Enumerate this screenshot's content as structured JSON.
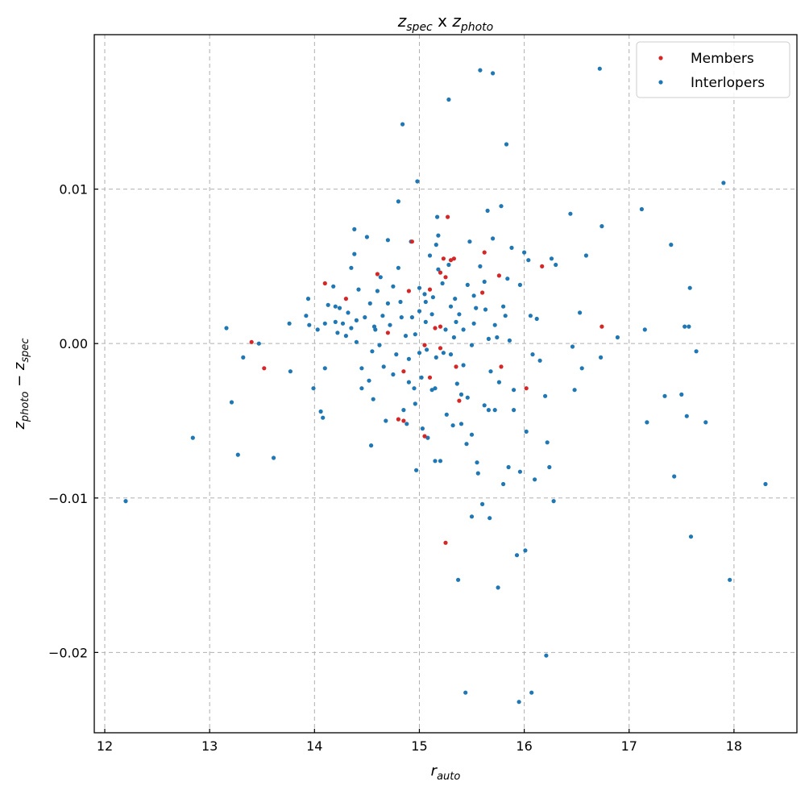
{
  "chart_data": {
    "type": "scatter",
    "title": {
      "main": "z",
      "sub1": "spec",
      "mid": " x ",
      "main2": "z",
      "sub2": "photo"
    },
    "xlabel": {
      "main": "r",
      "sub": "auto"
    },
    "ylabel": {
      "a": "z",
      "a_sub": "photo",
      "op": " − ",
      "b": "z",
      "b_sub": "spec"
    },
    "xlim": [
      11.9,
      18.6
    ],
    "ylim": [
      -0.0252,
      0.02
    ],
    "x_ticks": [
      12,
      13,
      14,
      15,
      16,
      17,
      18
    ],
    "x_tick_labels": [
      "12",
      "13",
      "14",
      "15",
      "16",
      "17",
      "18"
    ],
    "y_ticks": [
      -0.02,
      -0.01,
      0.0,
      0.01
    ],
    "y_tick_labels": [
      "−0.02",
      "−0.01",
      "0.00",
      "0.01"
    ],
    "grid": true,
    "legend_position": "top-right",
    "colors": {
      "members": "#d62728",
      "interlopers": "#1f77b4"
    },
    "series": [
      {
        "name": "Members",
        "color": "#d62728",
        "points": [
          [
            14.1,
            0.0039
          ],
          [
            14.3,
            0.0029
          ],
          [
            14.6,
            0.0045
          ],
          [
            14.7,
            0.0007
          ],
          [
            14.8,
            -0.0049
          ],
          [
            14.85,
            -0.005
          ],
          [
            14.85,
            -0.0018
          ],
          [
            14.9,
            0.0034
          ],
          [
            14.93,
            0.0066
          ],
          [
            15.05,
            -0.006
          ],
          [
            15.05,
            -0.0001
          ],
          [
            15.1,
            0.0035
          ],
          [
            15.15,
            0.001
          ],
          [
            15.2,
            0.0046
          ],
          [
            15.2,
            0.0011
          ],
          [
            15.2,
            -0.0003
          ],
          [
            15.25,
            0.0043
          ],
          [
            15.27,
            0.0082
          ],
          [
            15.3,
            0.0054
          ],
          [
            15.33,
            0.0055
          ],
          [
            15.35,
            -0.0015
          ],
          [
            15.38,
            -0.0037
          ],
          [
            15.25,
            -0.0129
          ],
          [
            15.6,
            0.0033
          ],
          [
            15.62,
            0.0059
          ],
          [
            15.76,
            0.0044
          ],
          [
            15.78,
            -0.0015
          ],
          [
            16.02,
            -0.0029
          ],
          [
            16.17,
            0.005
          ],
          [
            16.74,
            0.0011
          ],
          [
            13.4,
            0.0001
          ],
          [
            13.52,
            -0.0016
          ],
          [
            15.23,
            0.0055
          ],
          [
            15.1,
            -0.0022
          ]
        ]
      },
      {
        "name": "Interlopers",
        "color": "#1f77b4",
        "points": [
          [
            12.2,
            -0.0102
          ],
          [
            12.84,
            -0.0061
          ],
          [
            13.16,
            0.001
          ],
          [
            13.21,
            -0.0038
          ],
          [
            13.27,
            -0.0072
          ],
          [
            13.32,
            -0.0009
          ],
          [
            13.47,
            0.0
          ],
          [
            13.61,
            -0.0074
          ],
          [
            13.76,
            0.0013
          ],
          [
            13.77,
            -0.0018
          ],
          [
            13.92,
            0.0018
          ],
          [
            13.94,
            0.0029
          ],
          [
            13.95,
            0.0012
          ],
          [
            13.99,
            -0.0029
          ],
          [
            14.03,
            0.0009
          ],
          [
            14.06,
            -0.0044
          ],
          [
            14.08,
            -0.0048
          ],
          [
            14.1,
            -0.0016
          ],
          [
            14.1,
            0.0013
          ],
          [
            14.13,
            0.0025
          ],
          [
            14.18,
            0.0037
          ],
          [
            14.2,
            0.0024
          ],
          [
            14.2,
            0.0014
          ],
          [
            14.22,
            0.0007
          ],
          [
            14.24,
            0.0023
          ],
          [
            14.27,
            0.0013
          ],
          [
            14.3,
            0.0005
          ],
          [
            14.32,
            0.002
          ],
          [
            14.35,
            0.0049
          ],
          [
            14.35,
            0.001
          ],
          [
            14.38,
            0.0074
          ],
          [
            14.38,
            0.0058
          ],
          [
            14.4,
            0.0015
          ],
          [
            14.4,
            0.0001
          ],
          [
            14.42,
            0.0035
          ],
          [
            14.45,
            -0.0016
          ],
          [
            14.45,
            -0.0029
          ],
          [
            14.48,
            0.0017
          ],
          [
            14.5,
            0.0069
          ],
          [
            14.52,
            -0.0024
          ],
          [
            14.53,
            0.0026
          ],
          [
            14.54,
            -0.0066
          ],
          [
            14.55,
            -0.0005
          ],
          [
            14.56,
            -0.0036
          ],
          [
            14.57,
            0.0011
          ],
          [
            14.6,
            0.0034
          ],
          [
            14.62,
            -0.0001
          ],
          [
            14.63,
            0.0043
          ],
          [
            14.65,
            0.0018
          ],
          [
            14.66,
            -0.0015
          ],
          [
            14.7,
            0.0067
          ],
          [
            14.72,
            0.0012
          ],
          [
            14.75,
            0.0037
          ],
          [
            14.75,
            -0.002
          ],
          [
            14.78,
            -0.0007
          ],
          [
            14.8,
            0.0049
          ],
          [
            14.8,
            0.0092
          ],
          [
            14.82,
            0.0027
          ],
          [
            14.83,
            0.0017
          ],
          [
            14.84,
            0.0142
          ],
          [
            14.85,
            -0.0043
          ],
          [
            14.87,
            0.0005
          ],
          [
            14.88,
            -0.0052
          ],
          [
            14.9,
            -0.001
          ],
          [
            14.92,
            0.0066
          ],
          [
            14.93,
            0.0017
          ],
          [
            14.95,
            -0.0029
          ],
          [
            14.96,
            -0.0039
          ],
          [
            14.97,
            -0.0082
          ],
          [
            14.98,
            0.0105
          ],
          [
            15.0,
            0.0036
          ],
          [
            15.0,
            0.0021
          ],
          [
            15.0,
            -0.0006
          ],
          [
            15.02,
            -0.0022
          ],
          [
            15.03,
            -0.0055
          ],
          [
            15.05,
            0.0032
          ],
          [
            15.06,
            0.0014
          ],
          [
            15.07,
            -0.0004
          ],
          [
            15.08,
            -0.0061
          ],
          [
            15.1,
            0.0057
          ],
          [
            15.12,
            0.0019
          ],
          [
            15.13,
            0.003
          ],
          [
            15.15,
            -0.0076
          ],
          [
            15.15,
            -0.0029
          ],
          [
            15.16,
            0.0064
          ],
          [
            15.17,
            0.0082
          ],
          [
            15.18,
            0.007
          ],
          [
            15.18,
            0.0048
          ],
          [
            15.2,
            -0.0076
          ],
          [
            15.22,
            0.0039
          ],
          [
            15.23,
            -0.0006
          ],
          [
            15.25,
            0.0009
          ],
          [
            15.26,
            -0.0046
          ],
          [
            15.28,
            0.0158
          ],
          [
            15.3,
            -0.0007
          ],
          [
            15.3,
            0.0024
          ],
          [
            15.32,
            -0.0053
          ],
          [
            15.33,
            0.0004
          ],
          [
            15.35,
            0.0014
          ],
          [
            15.36,
            -0.0026
          ],
          [
            15.37,
            -0.0153
          ],
          [
            15.38,
            0.0019
          ],
          [
            15.4,
            -0.0052
          ],
          [
            15.4,
            -0.0033
          ],
          [
            15.42,
            0.0009
          ],
          [
            15.44,
            -0.0226
          ],
          [
            15.45,
            -0.0065
          ],
          [
            15.46,
            0.0038
          ],
          [
            15.48,
            0.0066
          ],
          [
            15.5,
            -0.0112
          ],
          [
            15.5,
            -0.0001
          ],
          [
            15.52,
            0.0013
          ],
          [
            15.55,
            -0.0077
          ],
          [
            15.56,
            -0.0084
          ],
          [
            15.58,
            0.0177
          ],
          [
            15.6,
            -0.0104
          ],
          [
            15.62,
            -0.004
          ],
          [
            15.63,
            0.0022
          ],
          [
            15.65,
            0.0086
          ],
          [
            15.66,
            -0.0043
          ],
          [
            15.67,
            -0.0113
          ],
          [
            15.7,
            0.0175
          ],
          [
            15.7,
            0.0068
          ],
          [
            15.72,
            -0.0043
          ],
          [
            15.75,
            -0.0158
          ],
          [
            15.76,
            -0.0025
          ],
          [
            15.78,
            0.0089
          ],
          [
            15.8,
            -0.0091
          ],
          [
            15.82,
            0.0018
          ],
          [
            15.83,
            0.0129
          ],
          [
            15.84,
            0.0042
          ],
          [
            15.85,
            -0.008
          ],
          [
            15.88,
            0.0062
          ],
          [
            15.9,
            -0.0043
          ],
          [
            15.93,
            -0.0137
          ],
          [
            15.95,
            -0.0232
          ],
          [
            15.96,
            -0.0083
          ],
          [
            16.0,
            0.0059
          ],
          [
            16.01,
            -0.0134
          ],
          [
            16.02,
            -0.0057
          ],
          [
            16.04,
            0.0054
          ],
          [
            16.06,
            0.0018
          ],
          [
            16.07,
            -0.0226
          ],
          [
            16.1,
            -0.0088
          ],
          [
            16.12,
            0.0016
          ],
          [
            16.15,
            -0.0011
          ],
          [
            16.2,
            -0.0034
          ],
          [
            16.21,
            -0.0202
          ],
          [
            16.22,
            -0.0064
          ],
          [
            16.24,
            -0.008
          ],
          [
            16.26,
            0.0055
          ],
          [
            16.28,
            -0.0102
          ],
          [
            16.3,
            0.0051
          ],
          [
            16.44,
            0.0084
          ],
          [
            16.46,
            -0.0002
          ],
          [
            16.48,
            -0.003
          ],
          [
            16.53,
            0.002
          ],
          [
            16.55,
            -0.0016
          ],
          [
            16.59,
            0.0057
          ],
          [
            16.72,
            0.0178
          ],
          [
            16.73,
            -0.0009
          ],
          [
            16.74,
            0.0076
          ],
          [
            16.89,
            0.0004
          ],
          [
            17.12,
            0.0087
          ],
          [
            17.15,
            0.0009
          ],
          [
            17.17,
            -0.0051
          ],
          [
            17.34,
            -0.0034
          ],
          [
            17.4,
            0.0064
          ],
          [
            17.43,
            -0.0086
          ],
          [
            17.5,
            -0.0033
          ],
          [
            17.53,
            0.0011
          ],
          [
            17.55,
            -0.0047
          ],
          [
            17.57,
            0.0011
          ],
          [
            17.58,
            0.0036
          ],
          [
            17.59,
            -0.0125
          ],
          [
            17.64,
            -0.0005
          ],
          [
            17.73,
            -0.0051
          ],
          [
            17.9,
            0.0104
          ],
          [
            17.96,
            -0.0153
          ],
          [
            18.3,
            -0.0091
          ],
          [
            15.12,
            -0.003
          ],
          [
            15.28,
            0.0051
          ],
          [
            15.42,
            -0.0014
          ],
          [
            15.54,
            0.0023
          ],
          [
            15.68,
            -0.0018
          ],
          [
            15.74,
            0.0004
          ],
          [
            15.9,
            -0.003
          ],
          [
            15.58,
            0.005
          ],
          [
            15.62,
            0.004
          ],
          [
            15.8,
            0.0024
          ],
          [
            15.34,
            0.0029
          ],
          [
            15.16,
            -0.0009
          ],
          [
            15.06,
            0.0027
          ],
          [
            14.96,
            0.0006
          ],
          [
            14.9,
            -0.0025
          ],
          [
            14.68,
            -0.005
          ],
          [
            14.58,
            0.0009
          ],
          [
            14.7,
            0.0026
          ],
          [
            15.46,
            -0.0035
          ],
          [
            15.52,
            0.0031
          ],
          [
            15.66,
            0.0003
          ],
          [
            15.72,
            0.0012
          ],
          [
            15.86,
            0.0002
          ],
          [
            15.96,
            0.0038
          ],
          [
            16.08,
            -0.0007
          ],
          [
            15.5,
            -0.0059
          ]
        ]
      }
    ]
  }
}
